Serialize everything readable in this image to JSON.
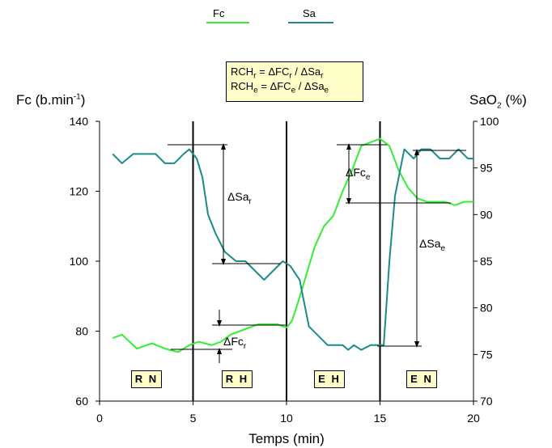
{
  "chart_data": {
    "type": "line",
    "legend": {
      "position": "top",
      "items": [
        {
          "name": "Fc",
          "color": "#33ee33"
        },
        {
          "name": "Sa",
          "color": "#1a8a8a"
        }
      ]
    },
    "formula": {
      "line1": {
        "a": "RCH",
        "a_sub": "r",
        "b": " = ΔFC",
        "b_sub": "r",
        "c": " / ΔSa",
        "c_sub": "r"
      },
      "line2": {
        "a": "RCH",
        "a_sub": "e",
        "b": " = ΔFC",
        "b_sub": "e",
        "c": " / ΔSa",
        "c_sub": "e"
      }
    },
    "y_left_label": {
      "prefix": "Fc (b.min",
      "sup": "-1",
      "suffix": ")"
    },
    "y_right_label": {
      "prefix": "SaO",
      "sub": "2",
      "suffix": " (%)"
    },
    "xlabel": "Temps (min)",
    "xlim": [
      0,
      20
    ],
    "ylim_left": [
      60,
      140
    ],
    "ylim_right": [
      70,
      100
    ],
    "x_ticks": [
      "0",
      "5",
      "10",
      "15",
      "20"
    ],
    "y_left_ticks": [
      "60",
      "80",
      "100",
      "120",
      "140"
    ],
    "y_right_ticks": [
      "70",
      "75",
      "80",
      "85",
      "90",
      "95",
      "100"
    ],
    "phase_dividers": [
      5,
      10,
      15
    ],
    "phases": [
      "R N",
      "R H",
      "E H",
      "E N"
    ],
    "series": [
      {
        "name": "Fc",
        "axis": "left",
        "color": "#33ee33",
        "x": [
          0.7,
          1.2,
          2,
          2.8,
          3.5,
          4.2,
          4.8,
          5.3,
          6,
          6.5,
          7,
          7.5,
          8,
          8.5,
          9,
          9.5,
          10,
          10.3,
          10.6,
          11,
          11.5,
          12,
          12.5,
          13,
          13.5,
          14,
          14.5,
          15,
          15.5,
          16,
          16.5,
          17,
          17.5,
          18,
          18.5,
          19,
          19.5,
          20
        ],
        "y": [
          78,
          79,
          75,
          76.5,
          75,
          74,
          76,
          77,
          76,
          77,
          79,
          80,
          81,
          82,
          82,
          82,
          81,
          83,
          88,
          95,
          104,
          110,
          113,
          120,
          126,
          133,
          134,
          135,
          133,
          126,
          121,
          118,
          117,
          117,
          117,
          116,
          117,
          117
        ]
      },
      {
        "name": "Sa",
        "axis": "right",
        "color": "#1a8a8a",
        "x": [
          0.7,
          1.2,
          1.8,
          2.3,
          3,
          3.5,
          4,
          4.5,
          4.8,
          5.2,
          5.5,
          5.8,
          6.2,
          6.7,
          7.3,
          7.8,
          8.3,
          8.8,
          9.3,
          9.8,
          10.2,
          10.7,
          11.2,
          11.7,
          12.2,
          12.7,
          13,
          13.3,
          13.6,
          14,
          14.5,
          15,
          15.2,
          15.5,
          15.8,
          16,
          16.3,
          16.8,
          17.2,
          17.7,
          18.2,
          18.7,
          19.2,
          19.7,
          20
        ],
        "y": [
          96.5,
          95.5,
          96.5,
          96.5,
          96.5,
          95.5,
          95.5,
          96.5,
          97,
          96,
          94,
          90,
          88,
          86,
          85,
          85,
          84,
          83,
          84,
          85,
          84.5,
          83,
          78,
          77,
          76,
          76,
          76,
          75.5,
          76,
          75.5,
          76,
          76,
          76,
          85,
          92,
          94,
          97,
          96,
          97,
          97,
          96,
          96,
          97,
          96,
          96
        ]
      }
    ],
    "annotations": [
      {
        "name": "ΔSa",
        "sub": "r"
      },
      {
        "name": "ΔFc",
        "sub": "r"
      },
      {
        "name": "ΔFc",
        "sub": "e"
      },
      {
        "name": "ΔSa",
        "sub": "e"
      }
    ]
  }
}
